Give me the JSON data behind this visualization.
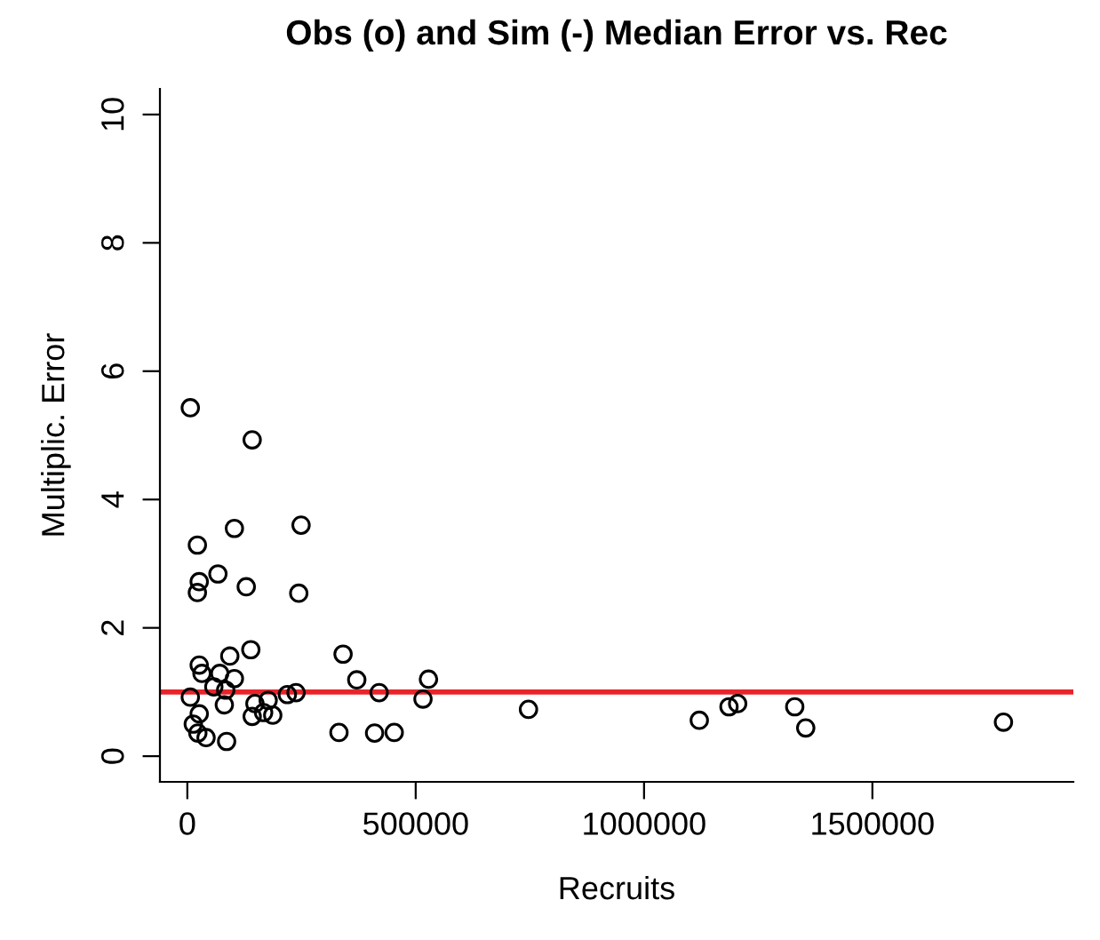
{
  "chart_data": {
    "type": "scatter",
    "title": "Obs (o) and Sim (-) Median Error vs. Rec",
    "xlabel": "Recruits",
    "ylabel": "Multiplic. Error",
    "x": [
      6500,
      142000,
      22000,
      103000,
      249000,
      67000,
      26000,
      22000,
      129000,
      244000,
      139000,
      26000,
      93000,
      32000,
      71000,
      103000,
      341000,
      371000,
      528000,
      420000,
      516000,
      6500,
      58000,
      84000,
      81000,
      219000,
      238000,
      177000,
      148000,
      142000,
      167000,
      187000,
      26000,
      13000,
      23000,
      41000,
      86000,
      332000,
      410000,
      453000,
      747000,
      1121000,
      1186000,
      1205000,
      1330000,
      1354000,
      1787000
    ],
    "series": [
      {
        "color": "#000000",
        "values": [
          5.43,
          4.93,
          3.29,
          3.55,
          3.6,
          2.84,
          2.72,
          2.55,
          2.64,
          2.54,
          1.66,
          1.42,
          1.56,
          1.29,
          1.29,
          1.21,
          1.59,
          1.19,
          1.2,
          0.99,
          0.89,
          0.92,
          1.08,
          1.03,
          0.8,
          0.96,
          0.99,
          0.87,
          0.82,
          0.62,
          0.68,
          0.64,
          0.66,
          0.5,
          0.36,
          0.29,
          0.23,
          0.37,
          0.36,
          0.37,
          0.73,
          0.56,
          0.77,
          0.82,
          0.77,
          0.44,
          0.53
        ]
      }
    ],
    "marker": "circle",
    "grid": false,
    "legend": false,
    "xlim": [
      -60000,
      1940000
    ],
    "ylim": [
      -0.4,
      10.4
    ],
    "xticks": [
      0,
      500000,
      1000000,
      1500000
    ],
    "yticks": [
      0,
      2,
      4,
      6,
      8,
      10
    ],
    "ref_lines": [
      {
        "axis": "y",
        "value": 1,
        "color": "#e8242a",
        "line_style": "solid"
      }
    ]
  }
}
